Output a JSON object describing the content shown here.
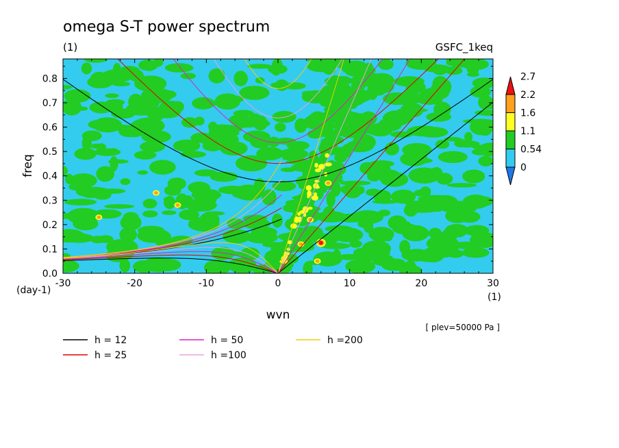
{
  "chart_data": {
    "type": "heatmap",
    "title": "omega S-T power spectrum",
    "subtitle_left": "(1)",
    "subtitle_right": "GSFC_1keq",
    "xlabel": "wvn",
    "ylabel": "freq",
    "x_unit_label": "(1)",
    "y_unit_label": "(day-1)",
    "xlim": [
      -30,
      30
    ],
    "ylim": [
      0,
      0.88
    ],
    "x_ticks": [
      -30,
      -20,
      -10,
      0,
      10,
      20,
      30
    ],
    "x_tick_labels": [
      "-30",
      "-20",
      "-10",
      "0",
      "10",
      "20",
      "30"
    ],
    "y_ticks": [
      0.0,
      0.1,
      0.2,
      0.3,
      0.4,
      0.5,
      0.6,
      0.7,
      0.8
    ],
    "y_tick_labels": [
      "0.0",
      "0.1",
      "0.2",
      "0.3",
      "0.4",
      "0.5",
      "0.6",
      "0.7",
      "0.8"
    ],
    "annotation": "[ plev=50000 Pa ]",
    "colorbar": {
      "levels": [
        "0",
        "0.54",
        "1.1",
        "1.6",
        "2.2",
        "2.7"
      ],
      "colors": [
        "#1f78e8",
        "#33ccee",
        "#22cc22",
        "#ffff22",
        "#ffa020",
        "#ee1111"
      ],
      "extend": "both"
    },
    "dispersion_curves": [
      {
        "label": "h = 12",
        "h": 12,
        "color": "#000000"
      },
      {
        "label": "h = 25",
        "h": 25,
        "color": "#e00000"
      },
      {
        "label": "h = 50",
        "h": 50,
        "color": "#e020c0"
      },
      {
        "label": "h =100",
        "h": 100,
        "color": "#e8a0e0"
      },
      {
        "label": "h =200",
        "h": 200,
        "color": "#f0d000"
      }
    ],
    "background_level_color": "#33ccee"
  }
}
